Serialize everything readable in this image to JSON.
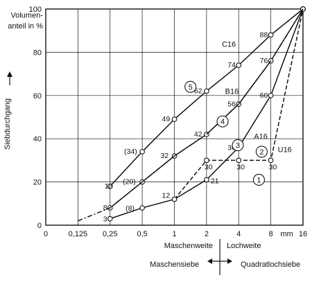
{
  "chart_data": {
    "type": "line",
    "title": "",
    "ylabel": "Siebdurchgang",
    "ylabel_unit": "Volumenanteil in %",
    "ylabel_unit_lines": [
      "Volumen-",
      "anteil in %"
    ],
    "ylim": [
      0,
      100
    ],
    "yticks": [
      0,
      20,
      40,
      60,
      80,
      100
    ],
    "yticks_labels": [
      "0",
      "20",
      "40",
      "60",
      "80",
      "100"
    ],
    "x": [
      0,
      0.125,
      0.25,
      0.5,
      1,
      2,
      4,
      8,
      16
    ],
    "xtick_labels": [
      "0",
      "0,125",
      "0,25",
      "0,5",
      "1",
      "2",
      "4",
      "8",
      "16"
    ],
    "x_unit": "mm",
    "xlabel_left": "Maschenweite",
    "xlabel_right": "Lochweite",
    "bottom_left": "Maschensiebe",
    "bottom_right": "Quadratlochsiebe",
    "grid": true,
    "series": [
      {
        "name": "C16",
        "badge": "5",
        "style": "solid",
        "points": [
          {
            "x": 0.25,
            "y": 18,
            "label": "18"
          },
          {
            "x": 0.5,
            "y": 34,
            "label": "(34)"
          },
          {
            "x": 1,
            "y": 49,
            "label": "49"
          },
          {
            "x": 2,
            "y": 62,
            "label": "62"
          },
          {
            "x": 4,
            "y": 74,
            "label": "74"
          },
          {
            "x": 8,
            "y": 88,
            "label": "88"
          },
          {
            "x": 16,
            "y": 100,
            "label": ""
          }
        ]
      },
      {
        "name": "B16",
        "badge": "4",
        "style": "solid",
        "points": [
          {
            "x": 0.25,
            "y": 8,
            "label": "8"
          },
          {
            "x": 0.5,
            "y": 20,
            "label": "(20)"
          },
          {
            "x": 1,
            "y": 32,
            "label": "32"
          },
          {
            "x": 2,
            "y": 42,
            "label": "42"
          },
          {
            "x": 4,
            "y": 56,
            "label": "56"
          },
          {
            "x": 8,
            "y": 76,
            "label": "76"
          },
          {
            "x": 16,
            "y": 100,
            "label": ""
          }
        ]
      },
      {
        "name": "A16",
        "badge": "3",
        "style": "solid",
        "points": [
          {
            "x": 0.25,
            "y": 3,
            "label": "3"
          },
          {
            "x": 0.5,
            "y": 8,
            "label": "(8)"
          },
          {
            "x": 1,
            "y": 12,
            "label": "12"
          },
          {
            "x": 2,
            "y": 21,
            "label": "21"
          },
          {
            "x": 4,
            "y": 36,
            "label": "36"
          },
          {
            "x": 8,
            "y": 60,
            "label": "60"
          },
          {
            "x": 16,
            "y": 100,
            "label": ""
          }
        ]
      },
      {
        "name": "U16",
        "badge": "2",
        "style": "dashed",
        "points": [
          {
            "x": 1,
            "y": 12,
            "label": ""
          },
          {
            "x": 2,
            "y": 30,
            "label": "30"
          },
          {
            "x": 4,
            "y": 30,
            "label": "30"
          },
          {
            "x": 8,
            "y": 30,
            "label": "30"
          },
          {
            "x": 16,
            "y": 100,
            "label": ""
          }
        ]
      },
      {
        "name": "",
        "badge": "1",
        "style": "dashdot",
        "points": [
          {
            "x": 0.125,
            "y": 2,
            "label": ""
          },
          {
            "x": 0.25,
            "y": 8,
            "label": ""
          },
          {
            "x": 0.5,
            "y": 20,
            "label": ""
          },
          {
            "x": 1,
            "y": 32,
            "label": ""
          },
          {
            "x": 2,
            "y": 42,
            "label": ""
          },
          {
            "x": 4,
            "y": 56,
            "label": ""
          },
          {
            "x": 8,
            "y": 76,
            "label": ""
          },
          {
            "x": 16,
            "y": 100,
            "label": ""
          }
        ]
      }
    ]
  }
}
